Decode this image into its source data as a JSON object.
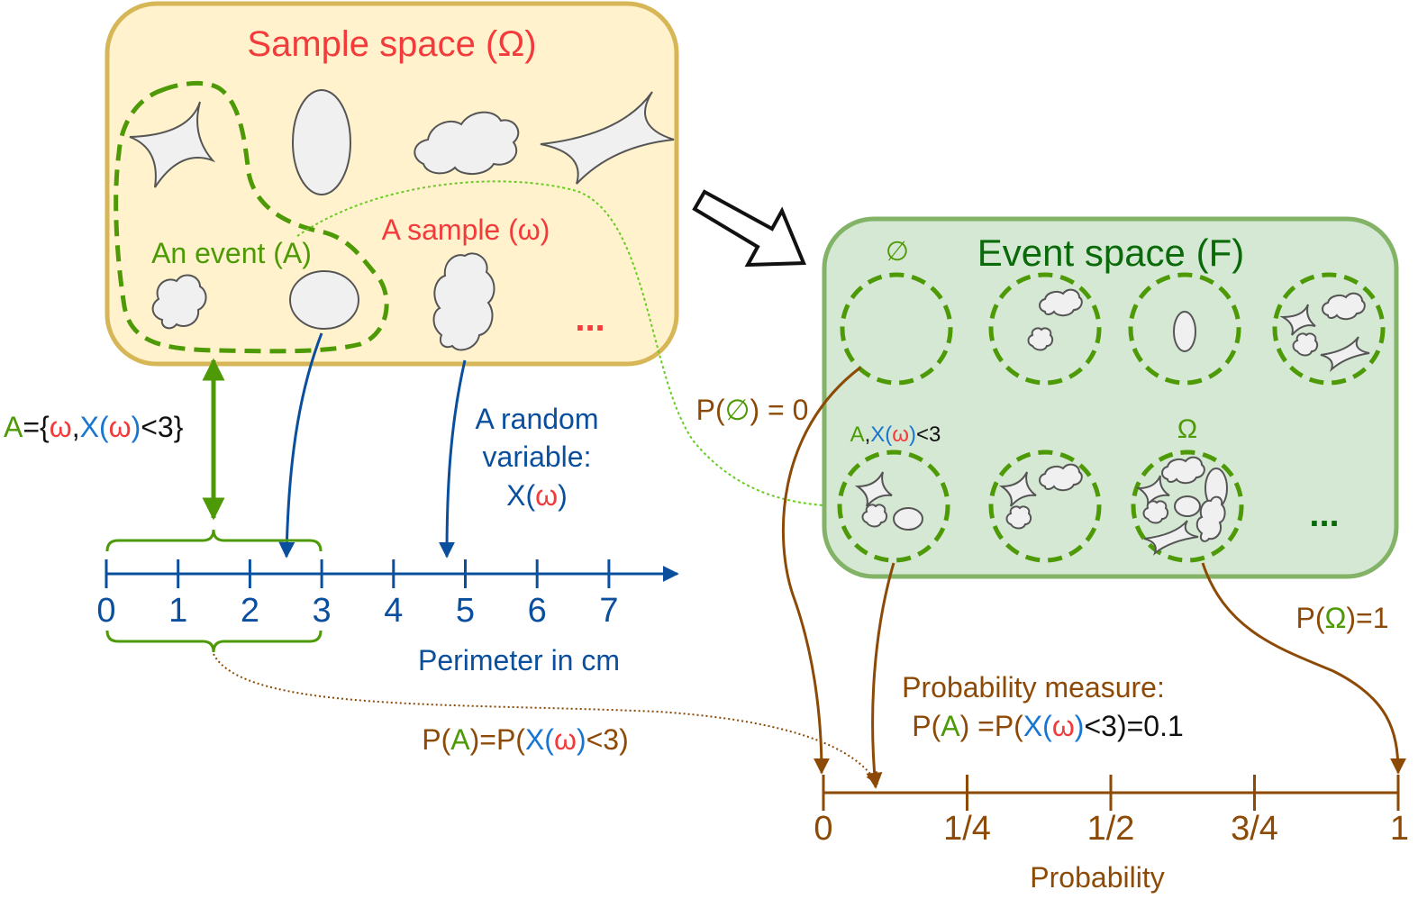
{
  "colors": {
    "sample_box_fill": "#fff2cc",
    "sample_box_stroke": "#d6b656",
    "event_box_fill": "#d5e8d4",
    "event_box_stroke": "#82b366",
    "event_green": "#4d9a06",
    "title_red": "#f33b3b",
    "axis_blue": "#0a4f9e",
    "prob_brown": "#8c4a06"
  },
  "sample_space": {
    "title": "Sample space (Ω)",
    "event_label": "An event (A)",
    "sample_label": "A sample (ω)",
    "ellipsis": "..."
  },
  "event_set": {
    "a": "A",
    "eq": "=",
    "open_brace": "{",
    "omega": "ω",
    "comma": ",",
    "x": "X",
    "lpar": "(",
    "rpar": ")",
    "lt3": "<3",
    "close_brace": "}"
  },
  "random_variable": {
    "line1": "A random",
    "line2": "variable:",
    "x": "X",
    "lpar": "(",
    "omega": "ω",
    "rpar": ")"
  },
  "perimeter_axis": {
    "ticks": [
      "0",
      "1",
      "2",
      "3",
      "4",
      "5",
      "6",
      "7"
    ],
    "label": "Perimeter in cm"
  },
  "event_space": {
    "title": "Event space (F)",
    "empty_set": "∅",
    "omega": "Ω",
    "ellipsis": "...",
    "a_label": "A",
    "a_comma": ",",
    "a_x": "X",
    "a_lpar": "(",
    "a_omega": "ω",
    "a_rpar": ")",
    "a_lt3": "<3"
  },
  "prob_empty": {
    "p": "P(",
    "set": "∅",
    "rest": ") = 0"
  },
  "prob_omega": {
    "p": "P(",
    "set": "Ω",
    "rest": ")=1"
  },
  "prob_a_left": {
    "p": "P(",
    "a": "A",
    "mid": ")=P(",
    "x": "X",
    "lpar": "(",
    "omega": "ω",
    "rpar": ")",
    "tail": "<3)"
  },
  "prob_measure": {
    "title": "Probability measure:",
    "p1": "P(",
    "a": "A",
    "p2": ") =P(",
    "x": "X",
    "lpar": "(",
    "omega": "ω",
    "rpar": ")",
    "tail": "<3)=0.1"
  },
  "probability_axis": {
    "ticks": [
      "0",
      "1/4",
      "1/2",
      "3/4",
      "1"
    ],
    "label": "Probability"
  }
}
